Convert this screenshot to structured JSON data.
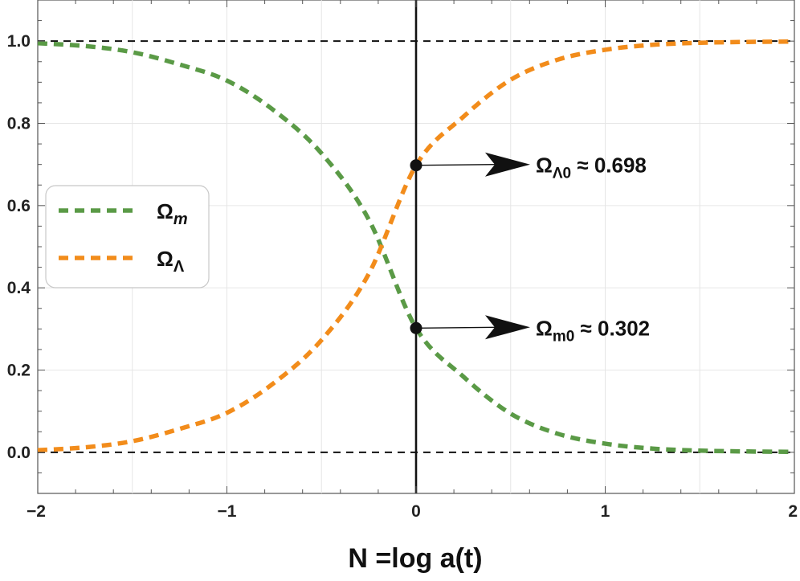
{
  "chart_data": {
    "type": "line",
    "xlabel": "N =log a(t)",
    "ylabel": "",
    "xlim": [
      -2,
      2
    ],
    "ylim": [
      -0.1,
      1.1
    ],
    "x_ticks": [
      -2,
      -1,
      0,
      1,
      2
    ],
    "x_tick_labels": [
      "−2",
      "−1",
      "0",
      "1",
      "2"
    ],
    "y_ticks": [
      0.0,
      0.2,
      0.4,
      0.6,
      0.8,
      1.0
    ],
    "y_tick_labels": [
      "0.0",
      "0.2",
      "0.4",
      "0.6",
      "0.8",
      "1.0"
    ],
    "grid": true,
    "legend_position": "left-middle",
    "reference_lines": {
      "horizontal": [
        0.0,
        1.0
      ],
      "vertical": [
        0
      ]
    },
    "series": [
      {
        "name": "Ωm",
        "name_base": "Ω",
        "name_sub": "m",
        "color": "#5a9a46",
        "style": "dashed",
        "x": [
          -2.0,
          -1.75,
          -1.5,
          -1.25,
          -1.0,
          -0.75,
          -0.5,
          -0.25,
          0.0,
          0.25,
          0.5,
          0.75,
          1.0,
          1.25,
          1.5,
          1.75,
          2.0
        ],
        "y": [
          0.995,
          0.988,
          0.973,
          0.943,
          0.904,
          0.831,
          0.727,
          0.566,
          0.302,
          0.184,
          0.094,
          0.045,
          0.021,
          0.009,
          0.004,
          0.002,
          0.001
        ]
      },
      {
        "name": "ΩΛ",
        "name_base": "Ω",
        "name_sub": "Λ",
        "color": "#f28c1b",
        "style": "dashed",
        "x": [
          -2.0,
          -1.75,
          -1.5,
          -1.25,
          -1.0,
          -0.75,
          -0.5,
          -0.25,
          0.0,
          0.25,
          0.5,
          0.75,
          1.0,
          1.25,
          1.5,
          1.75,
          2.0
        ],
        "y": [
          0.005,
          0.012,
          0.027,
          0.057,
          0.096,
          0.169,
          0.273,
          0.434,
          0.698,
          0.816,
          0.906,
          0.955,
          0.979,
          0.991,
          0.996,
          0.998,
          0.999
        ]
      }
    ],
    "annotations": [
      {
        "point": [
          0,
          0.698
        ],
        "text": "ΩΛ0 ≈ 0.698",
        "text_base": "Ω",
        "text_sub": "Λ0",
        "text_rest": " ≈ 0.698"
      },
      {
        "point": [
          0,
          0.302
        ],
        "text": "Ωm0 ≈ 0.302",
        "text_base": "Ω",
        "text_sub": "m0",
        "text_rest": " ≈ 0.302"
      }
    ]
  }
}
